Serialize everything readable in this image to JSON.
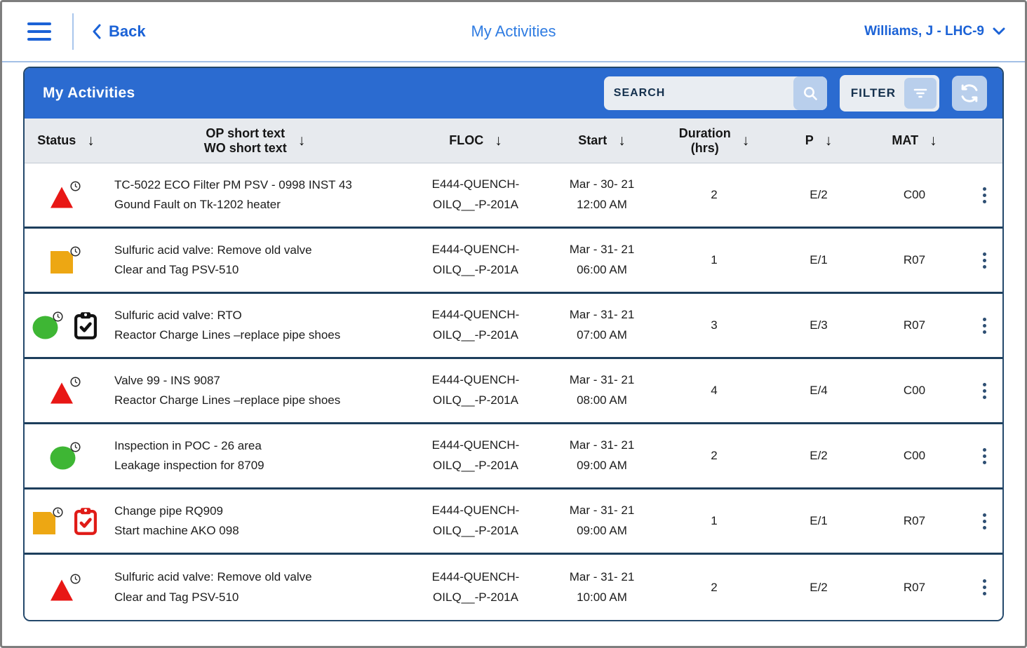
{
  "topbar": {
    "back_label": "Back",
    "title": "My Activities",
    "user_label": "Williams, J - LHC-9"
  },
  "panel": {
    "title": "My Activities",
    "search_placeholder": "SEARCH",
    "filter_label": "FILTER"
  },
  "icons": {
    "sort_arrow": "↓"
  },
  "colors": {
    "accent_blue": "#2b6bd0",
    "status_red": "#e81715",
    "status_amber": "#eda713",
    "status_green": "#3eb634",
    "clipboard_black": "#121212",
    "clipboard_red": "#e01b17",
    "badge_stroke": "#2a2a2a"
  },
  "table": {
    "columns": {
      "status": "Status",
      "op_line1": "OP short text",
      "op_line2": "WO short text",
      "floc": "FLOC",
      "start": "Start",
      "duration_line1": "Duration",
      "duration_line2": "(hrs)",
      "p": "P",
      "mat": "MAT"
    },
    "rows": [
      {
        "status_shape": "triangle",
        "status_color": "red",
        "clipboard": null,
        "op_text": "TC-5022 ECO Filter PM PSV - 0998 INST 43",
        "wo_text": "Gound Fault on Tk-1202 heater",
        "floc_line1": "E444-QUENCH-",
        "floc_line2": "OILQ__-P-201A",
        "start_date": "Mar - 30- 21",
        "start_time": "12:00 AM",
        "duration": "2",
        "priority": "E/2",
        "mat": "C00"
      },
      {
        "status_shape": "square",
        "status_color": "amber",
        "clipboard": null,
        "op_text": "Sulfuric acid valve: Remove old valve",
        "wo_text": "Clear and Tag PSV-510",
        "floc_line1": "E444-QUENCH-",
        "floc_line2": "OILQ__-P-201A",
        "start_date": "Mar - 31- 21",
        "start_time": "06:00 AM",
        "duration": "1",
        "priority": "E/1",
        "mat": "R07"
      },
      {
        "status_shape": "circle",
        "status_color": "green",
        "clipboard": "black",
        "op_text": "Sulfuric acid valve: RTO",
        "wo_text": "Reactor Charge Lines –replace pipe shoes",
        "floc_line1": "E444-QUENCH-",
        "floc_line2": "OILQ__-P-201A",
        "start_date": "Mar - 31- 21",
        "start_time": "07:00 AM",
        "duration": "3",
        "priority": "E/3",
        "mat": "R07"
      },
      {
        "status_shape": "triangle",
        "status_color": "red",
        "clipboard": null,
        "op_text": "Valve 99 - INS 9087",
        "wo_text": "Reactor Charge Lines –replace pipe shoes",
        "floc_line1": "E444-QUENCH-",
        "floc_line2": "OILQ__-P-201A",
        "start_date": "Mar - 31- 21",
        "start_time": "08:00 AM",
        "duration": "4",
        "priority": "E/4",
        "mat": "C00"
      },
      {
        "status_shape": "circle",
        "status_color": "green",
        "clipboard": null,
        "op_text": "Inspection in POC - 26 area",
        "wo_text": "Leakage inspection for 8709",
        "floc_line1": "E444-QUENCH-",
        "floc_line2": "OILQ__-P-201A",
        "start_date": "Mar - 31- 21",
        "start_time": "09:00 AM",
        "duration": "2",
        "priority": "E/2",
        "mat": "C00"
      },
      {
        "status_shape": "square",
        "status_color": "amber",
        "clipboard": "red",
        "op_text": "Change pipe RQ909",
        "wo_text": "Start machine AKO 098",
        "floc_line1": "E444-QUENCH-",
        "floc_line2": "OILQ__-P-201A",
        "start_date": "Mar - 31- 21",
        "start_time": "09:00 AM",
        "duration": "1",
        "priority": "E/1",
        "mat": "R07"
      },
      {
        "status_shape": "triangle",
        "status_color": "red",
        "clipboard": null,
        "op_text": "Sulfuric acid valve: Remove old valve",
        "wo_text": "Clear and Tag PSV-510",
        "floc_line1": "E444-QUENCH-",
        "floc_line2": "OILQ__-P-201A",
        "start_date": "Mar - 31- 21",
        "start_time": "10:00 AM",
        "duration": "2",
        "priority": "E/2",
        "mat": "R07"
      }
    ]
  }
}
